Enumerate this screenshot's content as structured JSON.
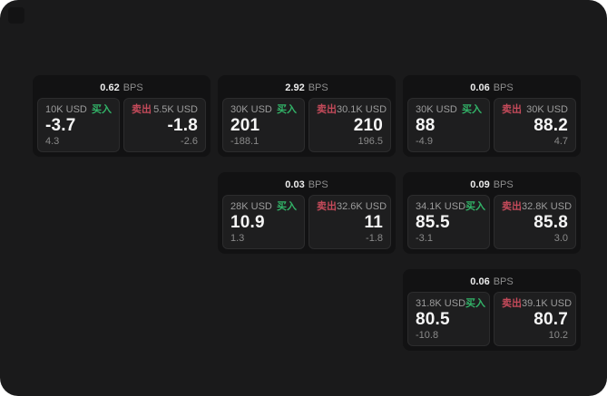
{
  "labels": {
    "bps": "BPS",
    "buy": "买入",
    "sell": "卖出"
  },
  "colors": {
    "buy_green": "#32b368",
    "sell_red": "#c44a5a",
    "page_bg": "#1a1a1b",
    "card_bg": "#121213",
    "panel_bg": "#1e1e1f"
  },
  "cards": [
    {
      "column": 1,
      "bps": "0.62",
      "buy": {
        "size": "10K USD",
        "value": "-3.7",
        "sub": "4.3"
      },
      "sell": {
        "size": "5.5K USD",
        "value": "-1.8",
        "sub": "-2.6"
      }
    },
    {
      "column": 2,
      "bps": "2.92",
      "buy": {
        "size": "30K USD",
        "value": "201",
        "sub": "-188.1"
      },
      "sell": {
        "size": "30.1K USD",
        "value": "210",
        "sub": "196.5"
      }
    },
    {
      "column": 2,
      "bps": "0.03",
      "buy": {
        "size": "28K USD",
        "value": "10.9",
        "sub": "1.3"
      },
      "sell": {
        "size": "32.6K USD",
        "value": "11",
        "sub": "-1.8"
      }
    },
    {
      "column": 3,
      "bps": "0.06",
      "buy": {
        "size": "30K USD",
        "value": "88",
        "sub": "-4.9"
      },
      "sell": {
        "size": "30K USD",
        "value": "88.2",
        "sub": "4.7"
      }
    },
    {
      "column": 3,
      "bps": "0.09",
      "buy": {
        "size": "34.1K USD",
        "value": "85.5",
        "sub": "-3.1"
      },
      "sell": {
        "size": "32.8K USD",
        "value": "85.8",
        "sub": "3.0"
      }
    },
    {
      "column": 3,
      "bps": "0.06",
      "buy": {
        "size": "31.8K USD",
        "value": "80.5",
        "sub": "-10.8"
      },
      "sell": {
        "size": "39.1K USD",
        "value": "80.7",
        "sub": "10.2"
      }
    }
  ]
}
